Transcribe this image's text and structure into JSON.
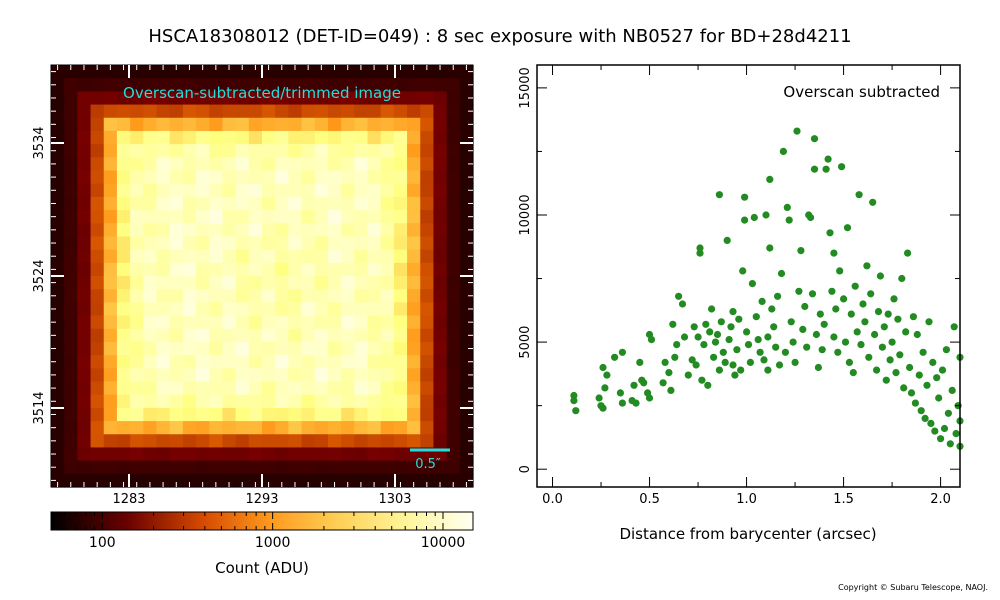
{
  "title": "HSCA18308012 (DET-ID=049) :  8 sec exposure with NB0527 for BD+28d4211",
  "copyright": "Copyright © Subaru Telescope, NAOJ.",
  "image_panel": {
    "label": "Overscan-subtracted/trimmed image",
    "scale_bar_label": "0.5″",
    "x_ticks": [
      "1283",
      "1293",
      "1303"
    ],
    "y_ticks": [
      "3534",
      "3524",
      "3514"
    ],
    "colormap": "afmhot",
    "colors": {
      "label": "#22dddd",
      "scale_bar": "#22dddd"
    }
  },
  "colorbar": {
    "label": "Count (ADU)",
    "tick_labels": [
      "100",
      "1000",
      "10000"
    ],
    "scale": "log",
    "range": [
      50,
      15000
    ]
  },
  "chart_data": {
    "type": "scatter",
    "annotation": "Overscan subtracted",
    "xlabel": "Distance from barycenter (arcsec)",
    "ylabel": "",
    "xlim": [
      -0.08,
      2.1
    ],
    "ylim": [
      -700,
      15900
    ],
    "xticks": [
      0.0,
      0.5,
      1.0,
      1.5,
      2.0
    ],
    "xtick_labels": [
      "0.0",
      "0.5",
      "1.0",
      "1.5",
      "2.0"
    ],
    "yticks": [
      0,
      5000,
      10000,
      15000
    ],
    "ytick_labels": [
      "0",
      "5000",
      "10000",
      "15000"
    ],
    "grid": false,
    "marker_color": "#228B22",
    "points": [
      [
        0.11,
        2900
      ],
      [
        0.11,
        2700
      ],
      [
        0.12,
        2300
      ],
      [
        0.24,
        2800
      ],
      [
        0.25,
        2500
      ],
      [
        0.26,
        2400
      ],
      [
        0.27,
        3200
      ],
      [
        0.26,
        4000
      ],
      [
        0.28,
        3700
      ],
      [
        0.32,
        4400
      ],
      [
        0.35,
        3000
      ],
      [
        0.36,
        2600
      ],
      [
        0.36,
        4600
      ],
      [
        0.41,
        2700
      ],
      [
        0.42,
        3300
      ],
      [
        0.43,
        2600
      ],
      [
        0.45,
        4200
      ],
      [
        0.46,
        3500
      ],
      [
        0.47,
        3400
      ],
      [
        0.49,
        3000
      ],
      [
        0.5,
        2800
      ],
      [
        0.5,
        5300
      ],
      [
        0.51,
        5100
      ],
      [
        0.57,
        3400
      ],
      [
        0.58,
        4200
      ],
      [
        0.6,
        3800
      ],
      [
        0.61,
        3100
      ],
      [
        0.62,
        5700
      ],
      [
        0.63,
        4400
      ],
      [
        0.64,
        4900
      ],
      [
        0.65,
        6800
      ],
      [
        0.67,
        6500
      ],
      [
        0.68,
        5200
      ],
      [
        0.7,
        3700
      ],
      [
        0.72,
        4300
      ],
      [
        0.73,
        5600
      ],
      [
        0.74,
        4100
      ],
      [
        0.75,
        5200
      ],
      [
        0.76,
        8500
      ],
      [
        0.76,
        8700
      ],
      [
        0.77,
        3500
      ],
      [
        0.78,
        4900
      ],
      [
        0.79,
        5700
      ],
      [
        0.8,
        3300
      ],
      [
        0.81,
        5400
      ],
      [
        0.82,
        6300
      ],
      [
        0.83,
        4400
      ],
      [
        0.84,
        5000
      ],
      [
        0.85,
        5300
      ],
      [
        0.86,
        10800
      ],
      [
        0.86,
        3900
      ],
      [
        0.87,
        5800
      ],
      [
        0.88,
        4600
      ],
      [
        0.89,
        4200
      ],
      [
        0.9,
        9000
      ],
      [
        0.91,
        5100
      ],
      [
        0.92,
        5600
      ],
      [
        0.93,
        4100
      ],
      [
        0.93,
        6200
      ],
      [
        0.94,
        3700
      ],
      [
        0.95,
        4700
      ],
      [
        0.96,
        5900
      ],
      [
        0.97,
        3900
      ],
      [
        0.98,
        7800
      ],
      [
        0.99,
        9800
      ],
      [
        0.99,
        10700
      ],
      [
        1.0,
        5400
      ],
      [
        1.01,
        4900
      ],
      [
        1.02,
        4200
      ],
      [
        1.03,
        7300
      ],
      [
        1.04,
        9900
      ],
      [
        1.05,
        6000
      ],
      [
        1.06,
        5100
      ],
      [
        1.07,
        4600
      ],
      [
        1.08,
        6600
      ],
      [
        1.09,
        4300
      ],
      [
        1.1,
        10000
      ],
      [
        1.11,
        5200
      ],
      [
        1.11,
        3900
      ],
      [
        1.12,
        8700
      ],
      [
        1.12,
        11400
      ],
      [
        1.13,
        6300
      ],
      [
        1.14,
        5600
      ],
      [
        1.15,
        4800
      ],
      [
        1.16,
        6800
      ],
      [
        1.17,
        4100
      ],
      [
        1.18,
        7700
      ],
      [
        1.19,
        12500
      ],
      [
        1.2,
        4600
      ],
      [
        1.21,
        10300
      ],
      [
        1.22,
        9800
      ],
      [
        1.23,
        5800
      ],
      [
        1.24,
        5000
      ],
      [
        1.25,
        4200
      ],
      [
        1.26,
        13300
      ],
      [
        1.27,
        7000
      ],
      [
        1.28,
        8600
      ],
      [
        1.29,
        5500
      ],
      [
        1.3,
        6400
      ],
      [
        1.31,
        4800
      ],
      [
        1.32,
        10000
      ],
      [
        1.33,
        9900
      ],
      [
        1.34,
        6900
      ],
      [
        1.35,
        11800
      ],
      [
        1.35,
        13000
      ],
      [
        1.36,
        5300
      ],
      [
        1.37,
        4000
      ],
      [
        1.38,
        6100
      ],
      [
        1.39,
        4700
      ],
      [
        1.4,
        5700
      ],
      [
        1.41,
        11800
      ],
      [
        1.42,
        12200
      ],
      [
        1.43,
        9300
      ],
      [
        1.44,
        7000
      ],
      [
        1.45,
        5200
      ],
      [
        1.45,
        8500
      ],
      [
        1.46,
        6300
      ],
      [
        1.47,
        4600
      ],
      [
        1.48,
        7800
      ],
      [
        1.49,
        11900
      ],
      [
        1.5,
        6700
      ],
      [
        1.51,
        5000
      ],
      [
        1.52,
        9500
      ],
      [
        1.53,
        4200
      ],
      [
        1.54,
        6100
      ],
      [
        1.55,
        3800
      ],
      [
        1.56,
        7200
      ],
      [
        1.57,
        5400
      ],
      [
        1.58,
        10800
      ],
      [
        1.59,
        4900
      ],
      [
        1.6,
        6500
      ],
      [
        1.61,
        5800
      ],
      [
        1.62,
        8000
      ],
      [
        1.63,
        4400
      ],
      [
        1.64,
        6900
      ],
      [
        1.65,
        10500
      ],
      [
        1.66,
        5300
      ],
      [
        1.67,
        3900
      ],
      [
        1.68,
        6200
      ],
      [
        1.69,
        7600
      ],
      [
        1.7,
        4800
      ],
      [
        1.71,
        5600
      ],
      [
        1.72,
        3500
      ],
      [
        1.73,
        6100
      ],
      [
        1.74,
        4300
      ],
      [
        1.75,
        5000
      ],
      [
        1.76,
        6700
      ],
      [
        1.77,
        3800
      ],
      [
        1.78,
        5900
      ],
      [
        1.79,
        4500
      ],
      [
        1.8,
        7500
      ],
      [
        1.81,
        3200
      ],
      [
        1.82,
        5400
      ],
      [
        1.83,
        8500
      ],
      [
        1.84,
        4000
      ],
      [
        1.85,
        3000
      ],
      [
        1.86,
        6000
      ],
      [
        1.87,
        2600
      ],
      [
        1.88,
        5300
      ],
      [
        1.89,
        3700
      ],
      [
        1.9,
        2300
      ],
      [
        1.91,
        4600
      ],
      [
        1.92,
        2000
      ],
      [
        1.93,
        3300
      ],
      [
        1.94,
        5800
      ],
      [
        1.95,
        1800
      ],
      [
        1.96,
        4200
      ],
      [
        1.97,
        1500
      ],
      [
        1.98,
        3600
      ],
      [
        1.99,
        2800
      ],
      [
        2.0,
        1200
      ],
      [
        2.01,
        3900
      ],
      [
        2.02,
        1600
      ],
      [
        2.03,
        4700
      ],
      [
        2.04,
        2200
      ],
      [
        2.05,
        1000
      ],
      [
        2.06,
        3100
      ],
      [
        2.07,
        5600
      ],
      [
        2.08,
        1400
      ],
      [
        2.09,
        2500
      ],
      [
        2.1,
        900
      ],
      [
        2.1,
        1900
      ],
      [
        2.1,
        4400
      ]
    ]
  }
}
